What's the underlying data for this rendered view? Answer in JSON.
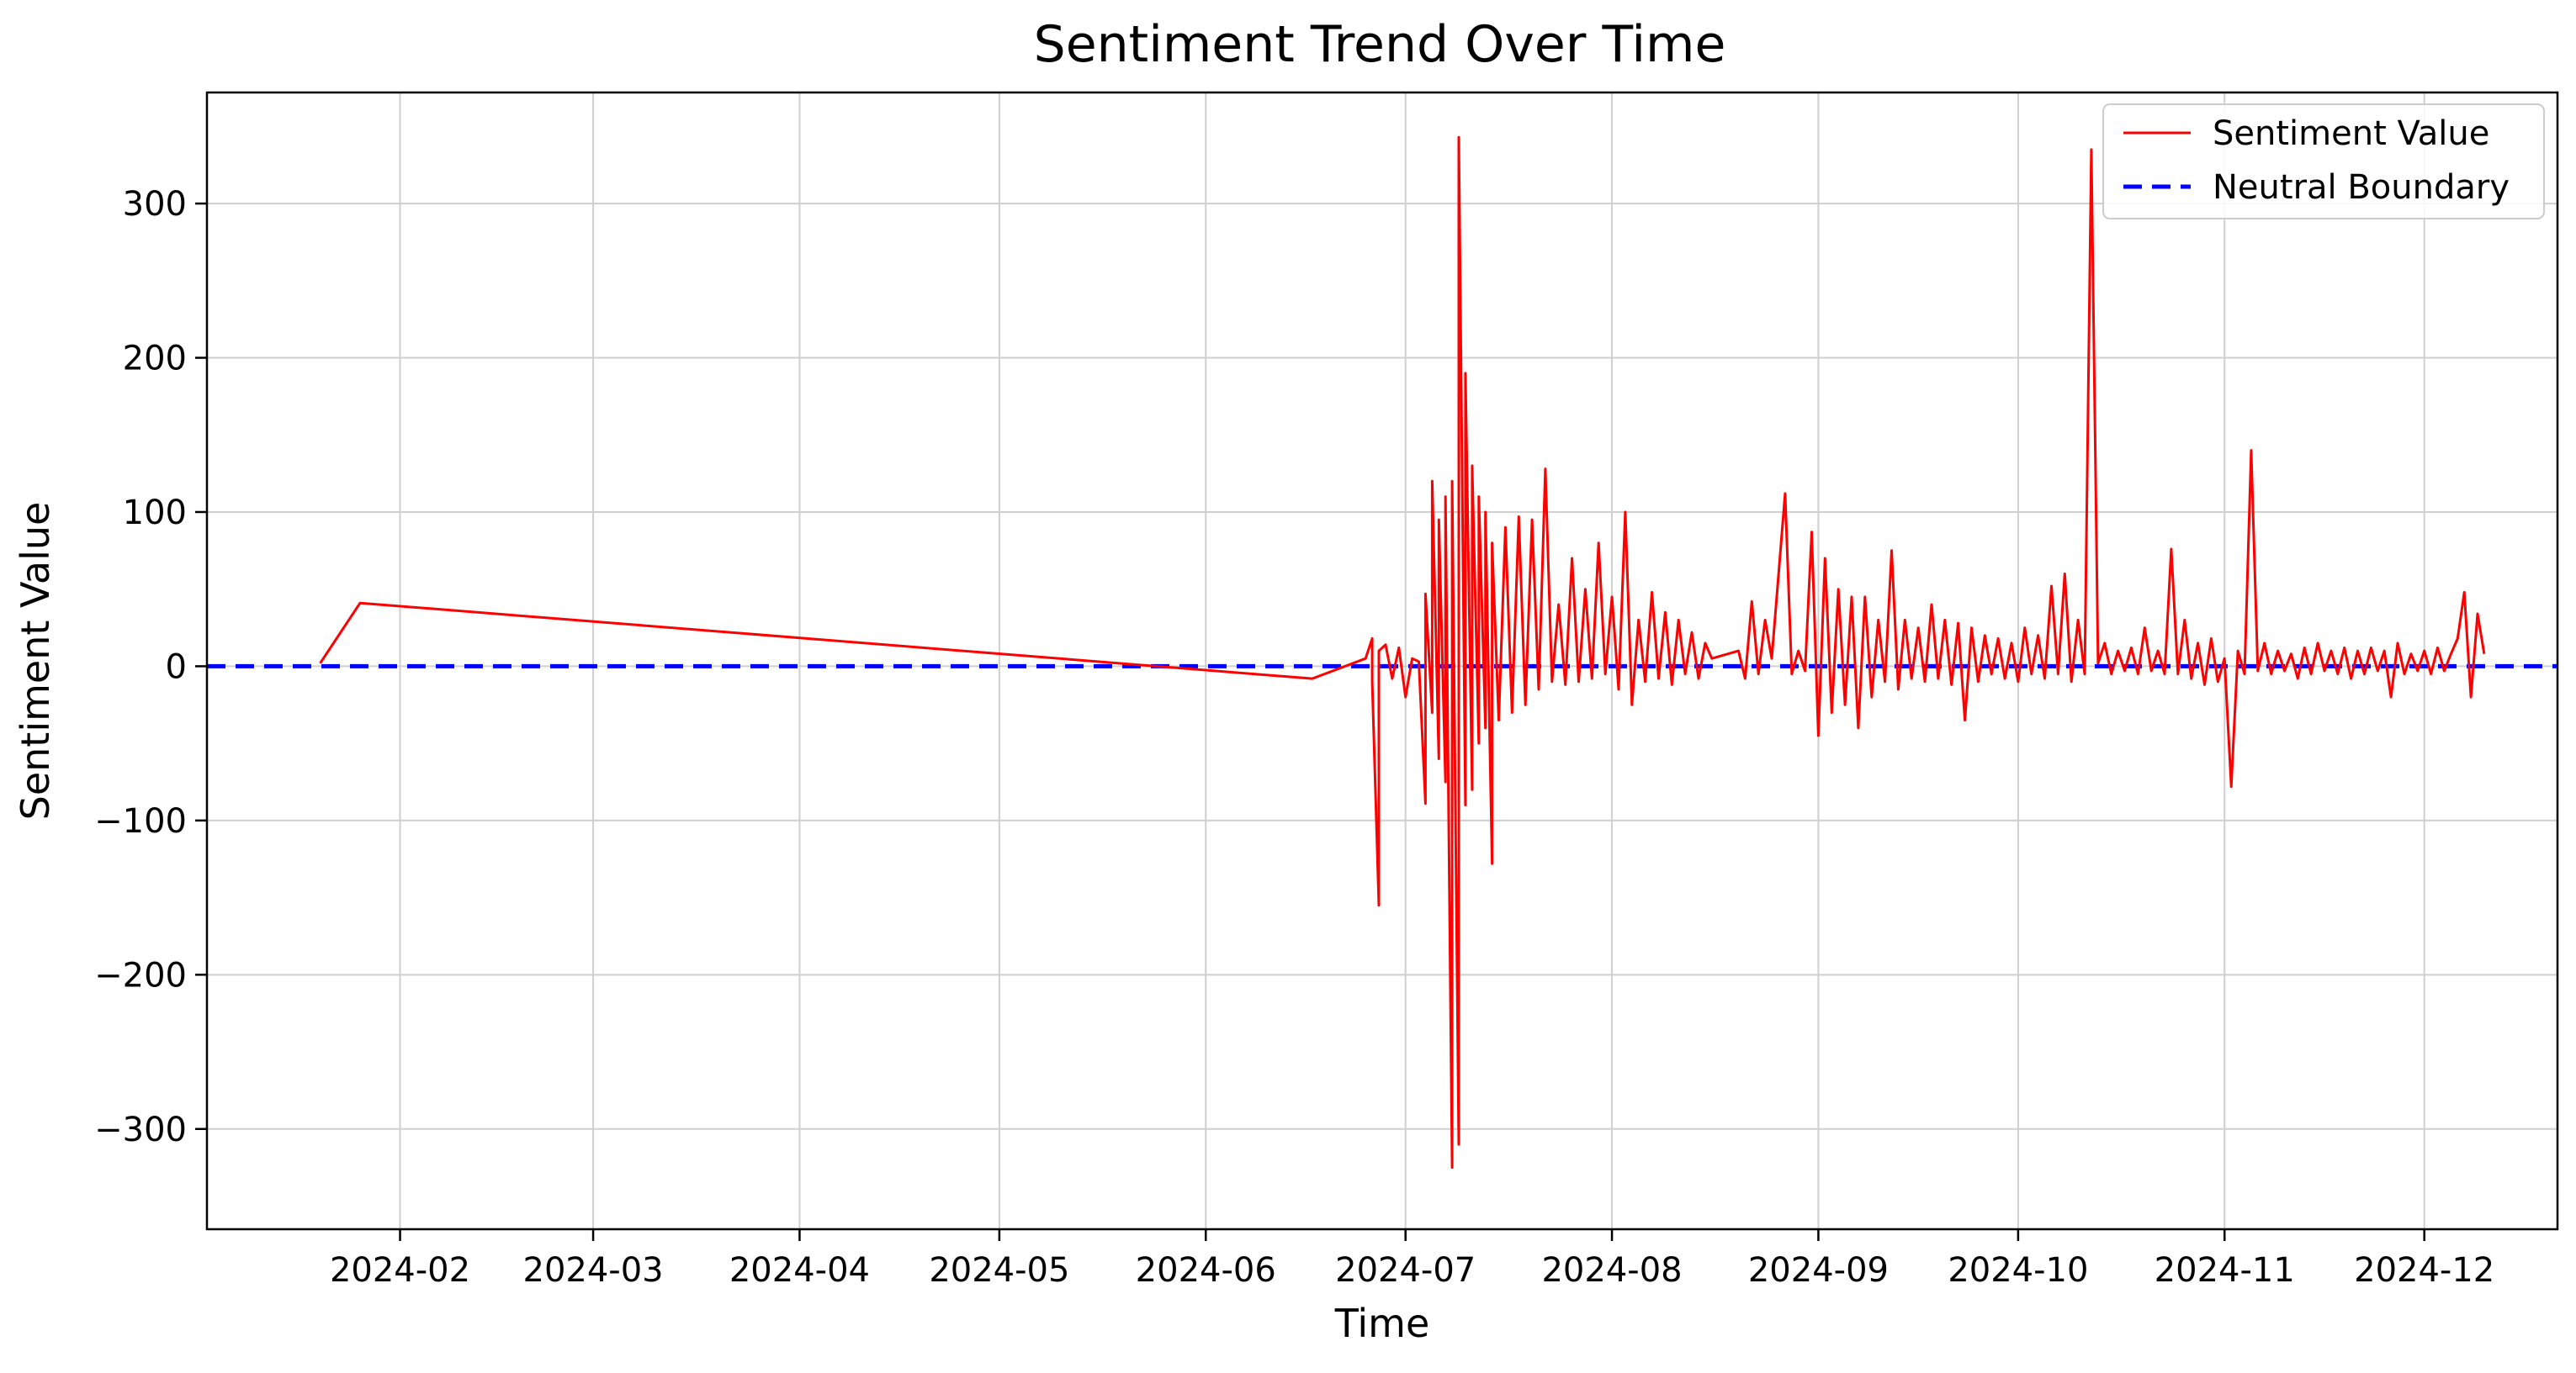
{
  "chart_data": {
    "type": "line",
    "title": "Sentiment Trend Over Time",
    "xlabel": "Time",
    "ylabel": "Sentiment Value",
    "xlim": [
      "2024-01-03",
      "2024-12-21"
    ],
    "ylim": [
      -365,
      372
    ],
    "grid": true,
    "legend_position": "top-right",
    "x_ticks": [
      {
        "date": "2024-02-01",
        "label": "2024-02"
      },
      {
        "date": "2024-03-01",
        "label": "2024-03"
      },
      {
        "date": "2024-04-01",
        "label": "2024-04"
      },
      {
        "date": "2024-05-01",
        "label": "2024-05"
      },
      {
        "date": "2024-06-01",
        "label": "2024-06"
      },
      {
        "date": "2024-07-01",
        "label": "2024-07"
      },
      {
        "date": "2024-08-01",
        "label": "2024-08"
      },
      {
        "date": "2024-09-01",
        "label": "2024-09"
      },
      {
        "date": "2024-10-01",
        "label": "2024-10"
      },
      {
        "date": "2024-11-01",
        "label": "2024-11"
      },
      {
        "date": "2024-12-01",
        "label": "2024-12"
      }
    ],
    "y_ticks": [
      {
        "value": 300,
        "label": "300"
      },
      {
        "value": 200,
        "label": "200"
      },
      {
        "value": 100,
        "label": "100"
      },
      {
        "value": 0,
        "label": "0"
      },
      {
        "value": -100,
        "label": "−100"
      },
      {
        "value": -200,
        "label": "−200"
      },
      {
        "value": -300,
        "label": "−300"
      }
    ],
    "series": [
      {
        "name": "Sentiment Value",
        "color": "#ff0000",
        "style": "solid",
        "points": [
          [
            "2024-01-20",
            2
          ],
          [
            "2024-01-26",
            41
          ],
          [
            "2024-06-17",
            -8
          ],
          [
            "2024-06-25",
            5
          ],
          [
            "2024-06-26",
            18
          ],
          [
            "2024-06-26",
            -10
          ],
          [
            "2024-06-27",
            -155
          ],
          [
            "2024-06-27",
            10
          ],
          [
            "2024-06-28",
            14
          ],
          [
            "2024-06-29",
            -8
          ],
          [
            "2024-06-30",
            12
          ],
          [
            "2024-07-01",
            -20
          ],
          [
            "2024-07-02",
            5
          ],
          [
            "2024-07-03",
            3
          ],
          [
            "2024-07-04",
            -89
          ],
          [
            "2024-07-04",
            47
          ],
          [
            "2024-07-05",
            -30
          ],
          [
            "2024-07-05",
            120
          ],
          [
            "2024-07-06",
            -60
          ],
          [
            "2024-07-06",
            95
          ],
          [
            "2024-07-07",
            -75
          ],
          [
            "2024-07-07",
            110
          ],
          [
            "2024-07-08",
            -325
          ],
          [
            "2024-07-08",
            120
          ],
          [
            "2024-07-09",
            -310
          ],
          [
            "2024-07-09",
            343
          ],
          [
            "2024-07-10",
            -90
          ],
          [
            "2024-07-10",
            190
          ],
          [
            "2024-07-11",
            -80
          ],
          [
            "2024-07-11",
            130
          ],
          [
            "2024-07-12",
            -50
          ],
          [
            "2024-07-12",
            110
          ],
          [
            "2024-07-13",
            -40
          ],
          [
            "2024-07-13",
            100
          ],
          [
            "2024-07-14",
            -128
          ],
          [
            "2024-07-14",
            80
          ],
          [
            "2024-07-15",
            -35
          ],
          [
            "2024-07-16",
            90
          ],
          [
            "2024-07-17",
            -30
          ],
          [
            "2024-07-18",
            97
          ],
          [
            "2024-07-19",
            -25
          ],
          [
            "2024-07-20",
            95
          ],
          [
            "2024-07-21",
            -15
          ],
          [
            "2024-07-22",
            128
          ],
          [
            "2024-07-23",
            -10
          ],
          [
            "2024-07-24",
            40
          ],
          [
            "2024-07-25",
            -12
          ],
          [
            "2024-07-26",
            70
          ],
          [
            "2024-07-27",
            -10
          ],
          [
            "2024-07-28",
            50
          ],
          [
            "2024-07-29",
            -8
          ],
          [
            "2024-07-30",
            80
          ],
          [
            "2024-07-31",
            -5
          ],
          [
            "2024-08-01",
            45
          ],
          [
            "2024-08-02",
            -15
          ],
          [
            "2024-08-03",
            100
          ],
          [
            "2024-08-04",
            -25
          ],
          [
            "2024-08-05",
            30
          ],
          [
            "2024-08-06",
            -10
          ],
          [
            "2024-08-07",
            48
          ],
          [
            "2024-08-08",
            -8
          ],
          [
            "2024-08-09",
            35
          ],
          [
            "2024-08-10",
            -12
          ],
          [
            "2024-08-11",
            30
          ],
          [
            "2024-08-12",
            -5
          ],
          [
            "2024-08-13",
            22
          ],
          [
            "2024-08-14",
            -8
          ],
          [
            "2024-08-15",
            15
          ],
          [
            "2024-08-16",
            5
          ],
          [
            "2024-08-20",
            10
          ],
          [
            "2024-08-21",
            -8
          ],
          [
            "2024-08-22",
            42
          ],
          [
            "2024-08-23",
            -5
          ],
          [
            "2024-08-24",
            30
          ],
          [
            "2024-08-25",
            5
          ],
          [
            "2024-08-27",
            112
          ],
          [
            "2024-08-28",
            -5
          ],
          [
            "2024-08-29",
            10
          ],
          [
            "2024-08-30",
            -3
          ],
          [
            "2024-08-31",
            87
          ],
          [
            "2024-09-01",
            -45
          ],
          [
            "2024-09-02",
            70
          ],
          [
            "2024-09-03",
            -30
          ],
          [
            "2024-09-04",
            50
          ],
          [
            "2024-09-05",
            -25
          ],
          [
            "2024-09-06",
            45
          ],
          [
            "2024-09-07",
            -40
          ],
          [
            "2024-09-08",
            45
          ],
          [
            "2024-09-09",
            -20
          ],
          [
            "2024-09-10",
            30
          ],
          [
            "2024-09-11",
            -10
          ],
          [
            "2024-09-12",
            75
          ],
          [
            "2024-09-13",
            -15
          ],
          [
            "2024-09-14",
            30
          ],
          [
            "2024-09-15",
            -8
          ],
          [
            "2024-09-16",
            25
          ],
          [
            "2024-09-17",
            -10
          ],
          [
            "2024-09-18",
            40
          ],
          [
            "2024-09-19",
            -8
          ],
          [
            "2024-09-20",
            30
          ],
          [
            "2024-09-21",
            -12
          ],
          [
            "2024-09-22",
            28
          ],
          [
            "2024-09-23",
            -35
          ],
          [
            "2024-09-24",
            25
          ],
          [
            "2024-09-25",
            -10
          ],
          [
            "2024-09-26",
            20
          ],
          [
            "2024-09-27",
            -5
          ],
          [
            "2024-09-28",
            18
          ],
          [
            "2024-09-29",
            -8
          ],
          [
            "2024-09-30",
            15
          ],
          [
            "2024-10-01",
            -10
          ],
          [
            "2024-10-02",
            25
          ],
          [
            "2024-10-03",
            -5
          ],
          [
            "2024-10-04",
            20
          ],
          [
            "2024-10-05",
            -8
          ],
          [
            "2024-10-06",
            52
          ],
          [
            "2024-10-07",
            -5
          ],
          [
            "2024-10-08",
            60
          ],
          [
            "2024-10-09",
            -10
          ],
          [
            "2024-10-10",
            30
          ],
          [
            "2024-10-11",
            -5
          ],
          [
            "2024-10-12",
            335
          ],
          [
            "2024-10-13",
            2
          ],
          [
            "2024-10-14",
            15
          ],
          [
            "2024-10-15",
            -5
          ],
          [
            "2024-10-16",
            10
          ],
          [
            "2024-10-17",
            -3
          ],
          [
            "2024-10-18",
            12
          ],
          [
            "2024-10-19",
            -5
          ],
          [
            "2024-10-20",
            25
          ],
          [
            "2024-10-21",
            -3
          ],
          [
            "2024-10-22",
            10
          ],
          [
            "2024-10-23",
            -5
          ],
          [
            "2024-10-24",
            76
          ],
          [
            "2024-10-25",
            -5
          ],
          [
            "2024-10-26",
            30
          ],
          [
            "2024-10-27",
            -8
          ],
          [
            "2024-10-28",
            15
          ],
          [
            "2024-10-29",
            -12
          ],
          [
            "2024-10-30",
            18
          ],
          [
            "2024-10-31",
            -10
          ],
          [
            "2024-11-01",
            5
          ],
          [
            "2024-11-02",
            -78
          ],
          [
            "2024-11-03",
            10
          ],
          [
            "2024-11-04",
            -5
          ],
          [
            "2024-11-05",
            140
          ],
          [
            "2024-11-06",
            -3
          ],
          [
            "2024-11-07",
            15
          ],
          [
            "2024-11-08",
            -5
          ],
          [
            "2024-11-09",
            10
          ],
          [
            "2024-11-10",
            -3
          ],
          [
            "2024-11-11",
            8
          ],
          [
            "2024-11-12",
            -8
          ],
          [
            "2024-11-13",
            12
          ],
          [
            "2024-11-14",
            -5
          ],
          [
            "2024-11-15",
            15
          ],
          [
            "2024-11-16",
            -3
          ],
          [
            "2024-11-17",
            10
          ],
          [
            "2024-11-18",
            -5
          ],
          [
            "2024-11-19",
            12
          ],
          [
            "2024-11-20",
            -8
          ],
          [
            "2024-11-21",
            10
          ],
          [
            "2024-11-22",
            -5
          ],
          [
            "2024-11-23",
            12
          ],
          [
            "2024-11-24",
            -3
          ],
          [
            "2024-11-25",
            10
          ],
          [
            "2024-11-26",
            -20
          ],
          [
            "2024-11-27",
            15
          ],
          [
            "2024-11-28",
            -5
          ],
          [
            "2024-11-29",
            8
          ],
          [
            "2024-11-30",
            -3
          ],
          [
            "2024-12-01",
            10
          ],
          [
            "2024-12-02",
            -5
          ],
          [
            "2024-12-03",
            12
          ],
          [
            "2024-12-04",
            -3
          ],
          [
            "2024-12-05",
            8
          ],
          [
            "2024-12-06",
            18
          ],
          [
            "2024-12-07",
            48
          ],
          [
            "2024-12-08",
            -20
          ],
          [
            "2024-12-09",
            34
          ],
          [
            "2024-12-10",
            8
          ]
        ]
      },
      {
        "name": "Neutral Boundary",
        "color": "#0000ff",
        "style": "dashed",
        "points": [
          [
            "2024-01-03",
            0
          ],
          [
            "2024-12-21",
            0
          ]
        ]
      }
    ]
  }
}
